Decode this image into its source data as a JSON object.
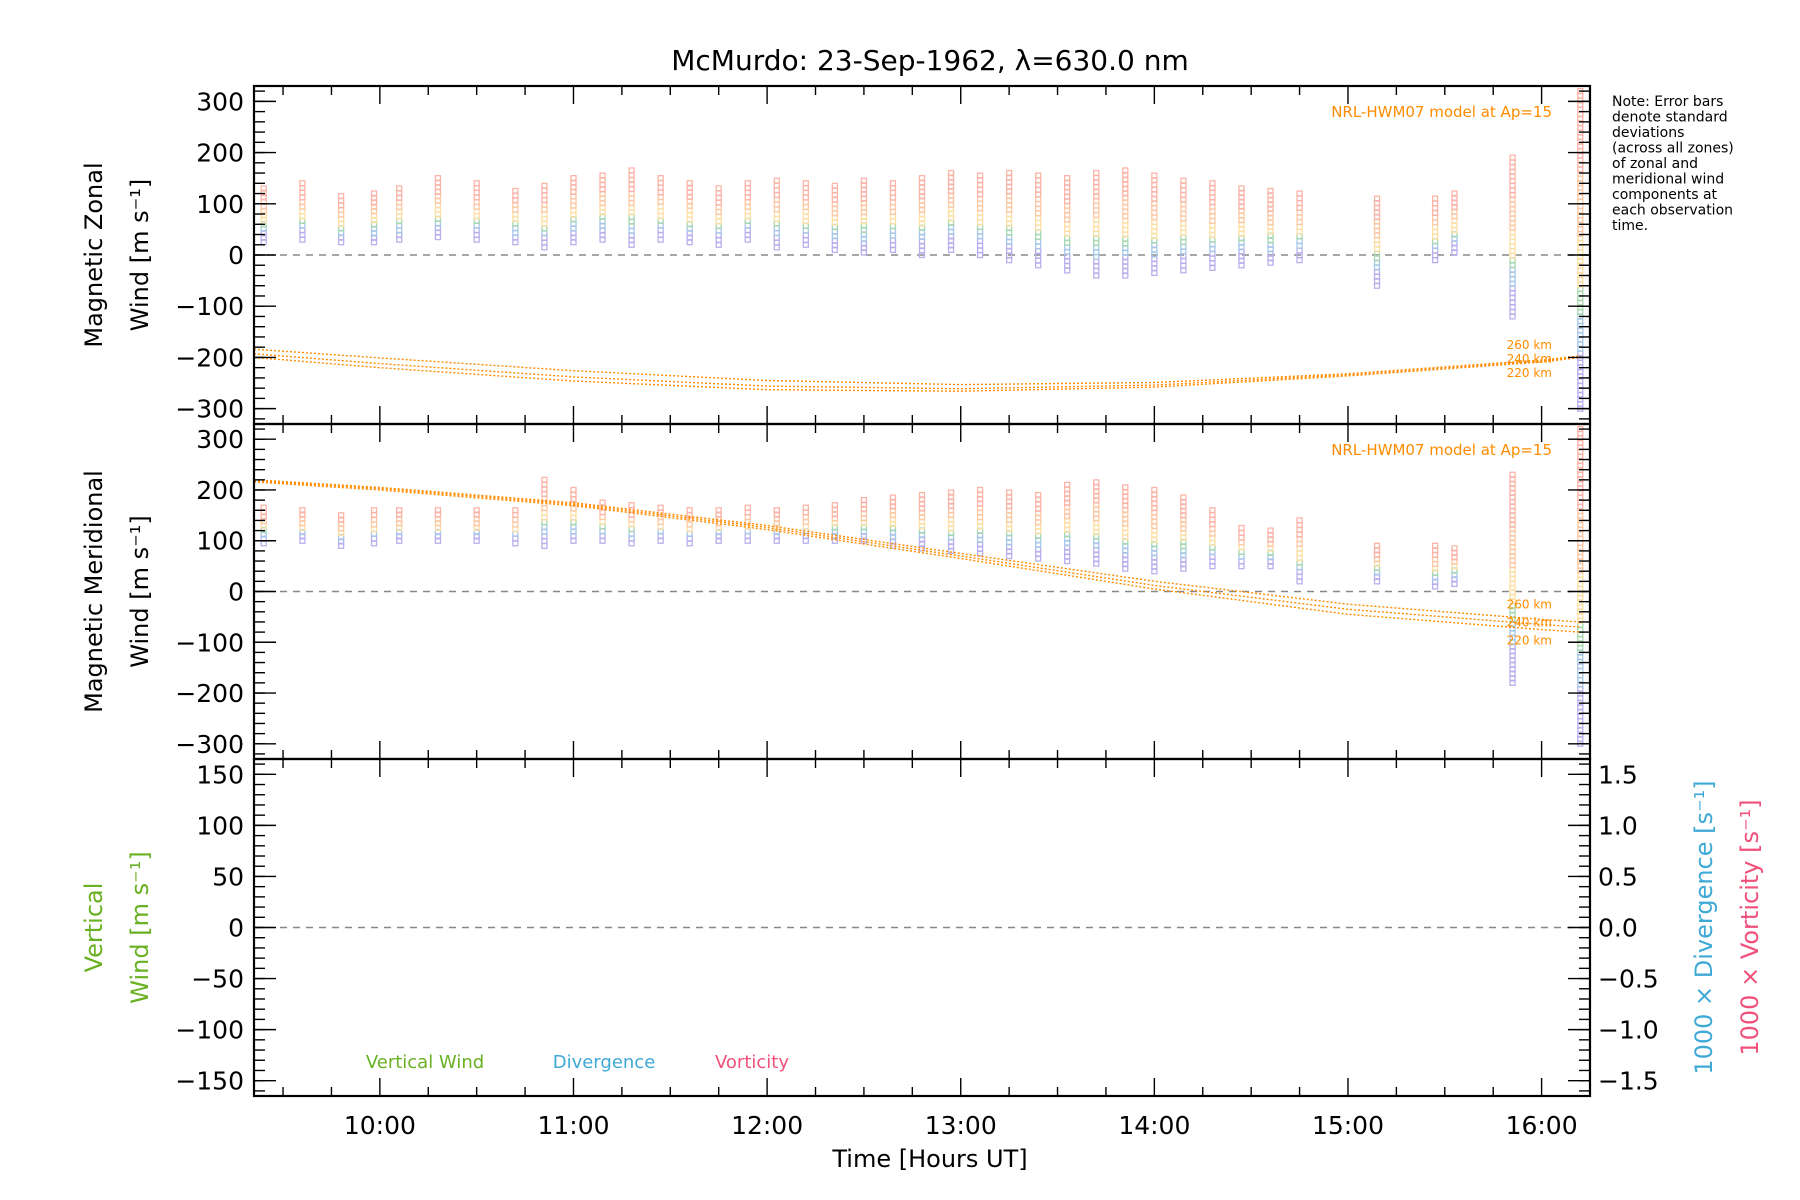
{
  "figure": {
    "title": "McMurdo: 23-Sep-1962, λ=630.0 nm",
    "note": [
      "Note: Error bars",
      "denote standard",
      "deviations",
      "(across all zones)",
      "of zonal and",
      "meridional wind",
      "components at",
      "each observation",
      "time."
    ],
    "xlabel": "Time [Hours UT]",
    "colors": {
      "model": "#ff8c00",
      "vertical": "#6ab023",
      "divergence": "#3fa9d6",
      "vorticity": "#f0507a",
      "zero_line": "#888888",
      "data_warm": [
        "#fbb4a8",
        "#fcc9a6",
        "#fde0a6"
      ],
      "data_cool": [
        "#a8d8b0",
        "#a8c8e8",
        "#b8b0ec"
      ]
    }
  },
  "chart_data": [
    {
      "panel": "zonal",
      "type": "scatter",
      "ylabel_line1": "Magnetic Zonal",
      "ylabel_line2": "Wind [m s⁻¹]",
      "ylim": [
        -330,
        330
      ],
      "yticks": [
        -300,
        -200,
        -100,
        0,
        100,
        200,
        300
      ],
      "xlim": [
        9.35,
        16.25
      ],
      "model_label": "NRL-HWM07 model at Ap=15",
      "model_heights": [
        "260 km",
        "240 km",
        "220 km"
      ],
      "model_curves": [
        {
          "name": "260 km",
          "x": [
            9.35,
            10.0,
            11.0,
            12.0,
            13.0,
            14.0,
            15.0,
            16.0,
            16.2
          ],
          "y": [
            -184,
            -201,
            -226,
            -245,
            -253,
            -249,
            -232,
            -205,
            -197
          ]
        },
        {
          "name": "240 km",
          "x": [
            9.35,
            10.0,
            11.0,
            12.0,
            13.0,
            14.0,
            15.0,
            16.0,
            16.2
          ],
          "y": [
            -193,
            -212,
            -238,
            -256,
            -261,
            -254,
            -234,
            -207,
            -199
          ]
        },
        {
          "name": "220 km",
          "x": [
            9.35,
            10.0,
            11.0,
            12.0,
            13.0,
            14.0,
            15.0,
            16.0,
            16.2
          ],
          "y": [
            -200,
            -220,
            -246,
            -263,
            -266,
            -258,
            -236,
            -209,
            -200
          ]
        }
      ],
      "observations": [
        {
          "t": 9.4,
          "lo": 25,
          "hi": 130
        },
        {
          "t": 9.6,
          "lo": 30,
          "hi": 140
        },
        {
          "t": 9.8,
          "lo": 25,
          "hi": 115
        },
        {
          "t": 9.97,
          "lo": 25,
          "hi": 120
        },
        {
          "t": 10.1,
          "lo": 30,
          "hi": 130
        },
        {
          "t": 10.3,
          "lo": 35,
          "hi": 150
        },
        {
          "t": 10.5,
          "lo": 30,
          "hi": 140
        },
        {
          "t": 10.7,
          "lo": 25,
          "hi": 125
        },
        {
          "t": 10.85,
          "lo": 15,
          "hi": 135
        },
        {
          "t": 11.0,
          "lo": 25,
          "hi": 150
        },
        {
          "t": 11.15,
          "lo": 30,
          "hi": 155
        },
        {
          "t": 11.3,
          "lo": 20,
          "hi": 165
        },
        {
          "t": 11.45,
          "lo": 30,
          "hi": 150
        },
        {
          "t": 11.6,
          "lo": 25,
          "hi": 140
        },
        {
          "t": 11.75,
          "lo": 20,
          "hi": 130
        },
        {
          "t": 11.9,
          "lo": 30,
          "hi": 140
        },
        {
          "t": 12.05,
          "lo": 15,
          "hi": 145
        },
        {
          "t": 12.2,
          "lo": 20,
          "hi": 140
        },
        {
          "t": 12.35,
          "lo": 10,
          "hi": 135
        },
        {
          "t": 12.5,
          "lo": 5,
          "hi": 145
        },
        {
          "t": 12.65,
          "lo": 10,
          "hi": 140
        },
        {
          "t": 12.8,
          "lo": 0,
          "hi": 150
        },
        {
          "t": 12.95,
          "lo": 10,
          "hi": 160
        },
        {
          "t": 13.1,
          "lo": 0,
          "hi": 155
        },
        {
          "t": 13.25,
          "lo": -10,
          "hi": 160
        },
        {
          "t": 13.4,
          "lo": -20,
          "hi": 155
        },
        {
          "t": 13.55,
          "lo": -30,
          "hi": 150
        },
        {
          "t": 13.7,
          "lo": -40,
          "hi": 160
        },
        {
          "t": 13.85,
          "lo": -40,
          "hi": 165
        },
        {
          "t": 14.0,
          "lo": -35,
          "hi": 155
        },
        {
          "t": 14.15,
          "lo": -30,
          "hi": 145
        },
        {
          "t": 14.3,
          "lo": -25,
          "hi": 140
        },
        {
          "t": 14.45,
          "lo": -20,
          "hi": 130
        },
        {
          "t": 14.6,
          "lo": -15,
          "hi": 125
        },
        {
          "t": 14.75,
          "lo": -10,
          "hi": 120
        },
        {
          "t": 15.15,
          "lo": -60,
          "hi": 110
        },
        {
          "t": 15.45,
          "lo": -10,
          "hi": 110
        },
        {
          "t": 15.55,
          "lo": 5,
          "hi": 120
        },
        {
          "t": 15.85,
          "lo": -120,
          "hi": 190
        },
        {
          "t": 16.2,
          "lo": -300,
          "hi": 320
        }
      ]
    },
    {
      "panel": "meridional",
      "type": "scatter",
      "ylabel_line1": "Magnetic Meridional",
      "ylabel_line2": "Wind [m s⁻¹]",
      "ylim": [
        -330,
        330
      ],
      "yticks": [
        -300,
        -200,
        -100,
        0,
        100,
        200,
        300
      ],
      "xlim": [
        9.35,
        16.25
      ],
      "model_label": "NRL-HWM07 model at Ap=15",
      "model_heights": [
        "260 km",
        "240 km",
        "220 km"
      ],
      "model_curves": [
        {
          "name": "260 km",
          "x": [
            9.35,
            10.0,
            11.0,
            12.0,
            13.0,
            14.0,
            15.0,
            16.0,
            16.2
          ],
          "y": [
            220,
            205,
            175,
            130,
            75,
            20,
            -25,
            -55,
            -60
          ]
        },
        {
          "name": "240 km",
          "x": [
            9.35,
            10.0,
            11.0,
            12.0,
            13.0,
            14.0,
            15.0,
            16.0,
            16.2
          ],
          "y": [
            218,
            203,
            172,
            126,
            70,
            12,
            -35,
            -65,
            -70
          ]
        },
        {
          "name": "220 km",
          "x": [
            9.35,
            10.0,
            11.0,
            12.0,
            13.0,
            14.0,
            15.0,
            16.0,
            16.2
          ],
          "y": [
            216,
            200,
            169,
            122,
            65,
            5,
            -45,
            -75,
            -80
          ]
        }
      ],
      "observations": [
        {
          "t": 9.4,
          "lo": 95,
          "hi": 165
        },
        {
          "t": 9.6,
          "lo": 100,
          "hi": 160
        },
        {
          "t": 9.8,
          "lo": 90,
          "hi": 150
        },
        {
          "t": 9.97,
          "lo": 95,
          "hi": 160
        },
        {
          "t": 10.1,
          "lo": 100,
          "hi": 160
        },
        {
          "t": 10.3,
          "lo": 100,
          "hi": 160
        },
        {
          "t": 10.5,
          "lo": 100,
          "hi": 160
        },
        {
          "t": 10.7,
          "lo": 95,
          "hi": 160
        },
        {
          "t": 10.85,
          "lo": 90,
          "hi": 220
        },
        {
          "t": 11.0,
          "lo": 100,
          "hi": 200
        },
        {
          "t": 11.15,
          "lo": 100,
          "hi": 175
        },
        {
          "t": 11.3,
          "lo": 95,
          "hi": 170
        },
        {
          "t": 11.45,
          "lo": 100,
          "hi": 165
        },
        {
          "t": 11.6,
          "lo": 95,
          "hi": 160
        },
        {
          "t": 11.75,
          "lo": 100,
          "hi": 160
        },
        {
          "t": 11.9,
          "lo": 100,
          "hi": 165
        },
        {
          "t": 12.05,
          "lo": 100,
          "hi": 160
        },
        {
          "t": 12.2,
          "lo": 100,
          "hi": 165
        },
        {
          "t": 12.35,
          "lo": 100,
          "hi": 170
        },
        {
          "t": 12.5,
          "lo": 100,
          "hi": 180
        },
        {
          "t": 12.65,
          "lo": 90,
          "hi": 185
        },
        {
          "t": 12.8,
          "lo": 85,
          "hi": 190
        },
        {
          "t": 12.95,
          "lo": 80,
          "hi": 195
        },
        {
          "t": 13.1,
          "lo": 75,
          "hi": 200
        },
        {
          "t": 13.25,
          "lo": 70,
          "hi": 195
        },
        {
          "t": 13.4,
          "lo": 65,
          "hi": 190
        },
        {
          "t": 13.55,
          "lo": 60,
          "hi": 210
        },
        {
          "t": 13.7,
          "lo": 55,
          "hi": 215
        },
        {
          "t": 13.85,
          "lo": 45,
          "hi": 205
        },
        {
          "t": 14.0,
          "lo": 40,
          "hi": 200
        },
        {
          "t": 14.15,
          "lo": 45,
          "hi": 185
        },
        {
          "t": 14.3,
          "lo": 50,
          "hi": 160
        },
        {
          "t": 14.45,
          "lo": 50,
          "hi": 125
        },
        {
          "t": 14.6,
          "lo": 50,
          "hi": 120
        },
        {
          "t": 14.75,
          "lo": 20,
          "hi": 140
        },
        {
          "t": 15.15,
          "lo": 20,
          "hi": 90
        },
        {
          "t": 15.45,
          "lo": 10,
          "hi": 90
        },
        {
          "t": 15.55,
          "lo": 15,
          "hi": 85
        },
        {
          "t": 15.85,
          "lo": -180,
          "hi": 230
        },
        {
          "t": 16.2,
          "lo": -300,
          "hi": 320
        }
      ]
    },
    {
      "panel": "vertical",
      "type": "line",
      "ylabel_line1": "Vertical",
      "ylabel_line2": "Wind [m s⁻¹]",
      "ylim": [
        -165,
        165
      ],
      "yticks": [
        -150,
        -100,
        -50,
        0,
        50,
        100,
        150
      ],
      "xlim": [
        9.35,
        16.25
      ],
      "xticks": [
        "10:00",
        "11:00",
        "12:00",
        "13:00",
        "14:00",
        "15:00",
        "16:00"
      ],
      "y2label_divergence": "1000 × Divergence [s⁻¹]",
      "y2label_vorticity": "1000 × Vorticity [s⁻¹]",
      "y2lim": [
        -1.65,
        1.65
      ],
      "y2ticks": [
        "−1.5",
        "−1.0",
        "−0.5",
        "0.0",
        "0.5",
        "1.0",
        "1.5"
      ],
      "legend": [
        "Vertical Wind",
        "Divergence",
        "Vorticity"
      ],
      "series": []
    }
  ]
}
